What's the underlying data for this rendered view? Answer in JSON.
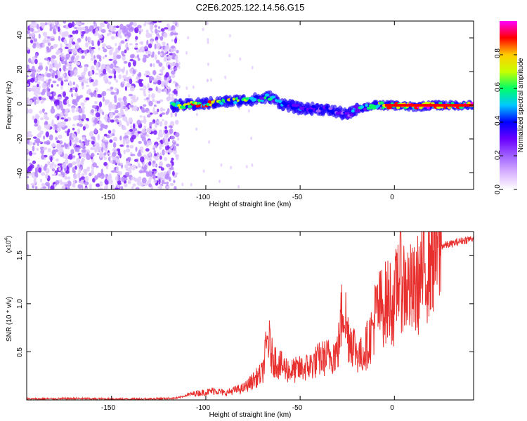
{
  "title": "C2E6.2025.122.14.56.G15",
  "chart_data": [
    {
      "type": "heatmap",
      "title": "C2E6.2025.122.14.56.G15",
      "xlabel": "Height of straight line (km)",
      "ylabel": "Frequency (Hz)",
      "xlim": [
        -195,
        42
      ],
      "ylim": [
        -50,
        50
      ],
      "x_ticks": [
        "-150",
        "-100",
        "-50",
        "0"
      ],
      "y_ticks": [
        "40",
        "20",
        "0",
        "-20",
        "-40"
      ],
      "colorbar": {
        "label": "Normalized spectral amplitude",
        "range": [
          0,
          1
        ],
        "ticks": [
          "0.0",
          "0.2",
          "0.4",
          "0.6",
          "0.8"
        ],
        "colors": [
          "#ffffff",
          "#d9b3ff",
          "#a060ff",
          "#6a00ff",
          "#0000ff",
          "#00c8ff",
          "#00ff66",
          "#c8ff00",
          "#ffcc00",
          "#ff0000",
          "#ff00ff"
        ]
      },
      "noise_region_x": [
        -195,
        -115
      ],
      "signal_track": {
        "x": [
          -118,
          -110,
          -100,
          -90,
          -80,
          -70,
          -66,
          -60,
          -50,
          -40,
          -30,
          -25,
          -20,
          -15,
          -10,
          -5,
          0,
          10,
          20,
          30,
          42
        ],
        "frequency": [
          0,
          0,
          1,
          2,
          3,
          4,
          5,
          1,
          -2,
          -2,
          -4,
          -6,
          -2,
          -1,
          0,
          0,
          0,
          -1,
          0,
          0,
          0
        ],
        "amplitude": [
          0.5,
          0.7,
          0.75,
          0.6,
          0.6,
          0.5,
          0.45,
          0.4,
          0.35,
          0.35,
          0.3,
          0.3,
          0.45,
          0.5,
          0.6,
          0.7,
          0.75,
          0.8,
          0.85,
          0.9,
          0.9
        ]
      }
    },
    {
      "type": "line",
      "xlabel": "Height of straight line (km)",
      "ylabel": "SNR (10 * v/v)",
      "y_multiplier": "(x10",
      "y_multiplier_exp": "4",
      "y_multiplier_close": ")",
      "xlim": [
        -195,
        42
      ],
      "ylim": [
        0,
        1.75
      ],
      "x_ticks": [
        "-150",
        "-100",
        "-50",
        "0"
      ],
      "y_ticks": [
        "1.5",
        "1.0",
        "0.5"
      ],
      "color": "#e8302e",
      "series": [
        {
          "x": [
            -195,
            -170,
            -150,
            -130,
            -115,
            -110,
            -105,
            -100,
            -95,
            -90,
            -85,
            -80,
            -75,
            -70,
            -67,
            -65,
            -60,
            -55,
            -50,
            -45,
            -40,
            -35,
            -30,
            -27,
            -25,
            -22,
            -20,
            -18,
            -15,
            -12,
            -10,
            -8,
            -5,
            -2,
            0,
            2,
            5,
            8,
            10,
            15,
            20,
            25,
            30,
            35,
            42
          ],
          "y": [
            0.01,
            0.015,
            0.01,
            0.01,
            0.02,
            0.05,
            0.07,
            0.08,
            0.1,
            0.07,
            0.1,
            0.12,
            0.2,
            0.28,
            0.65,
            0.45,
            0.35,
            0.3,
            0.32,
            0.35,
            0.42,
            0.45,
            0.5,
            1.05,
            0.7,
            0.6,
            0.5,
            0.45,
            0.55,
            0.7,
            0.9,
            0.95,
            1.0,
            1.05,
            0.95,
            1.35,
            1.2,
            1.15,
            1.1,
            1.3,
            1.55,
            1.6,
            1.62,
            1.65,
            1.68
          ]
        }
      ]
    }
  ]
}
